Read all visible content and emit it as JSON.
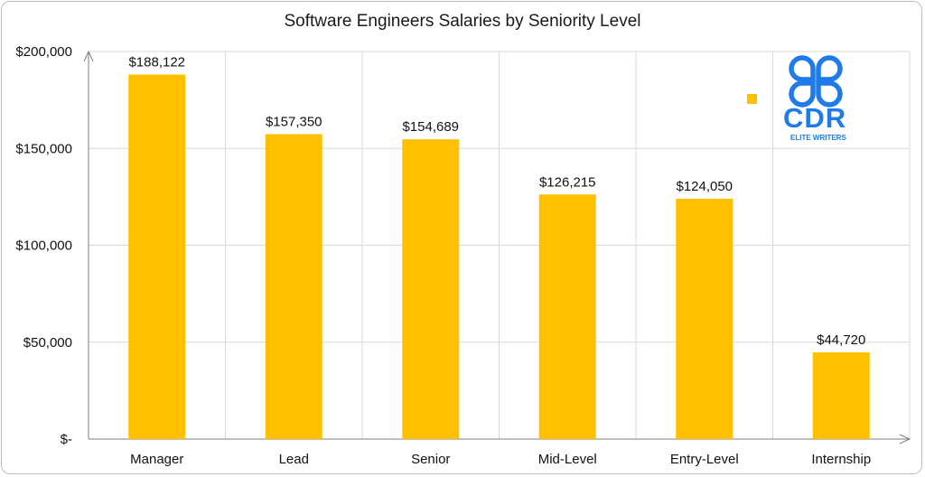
{
  "chart_data": {
    "type": "bar",
    "title": "Software Engineers Salaries by Seniority Level",
    "categories": [
      "Manager",
      "Lead",
      "Senior",
      "Mid-Level",
      "Entry-Level",
      "Internship"
    ],
    "series": [
      {
        "values": [
          188122,
          157350,
          154689,
          126215,
          124050,
          44720
        ],
        "color": "#FFC000"
      }
    ],
    "data_labels": [
      "$188,122",
      "$157,350",
      "$154,689",
      "$126,215",
      "$124,050",
      "$44,720"
    ],
    "y_ticks": [
      0,
      50000,
      100000,
      150000,
      200000
    ],
    "y_tick_labels": [
      "$-",
      "$50,000",
      "$100,000",
      "$150,000",
      "$200,000"
    ],
    "ylim": [
      0,
      200000
    ],
    "grid": true,
    "legend_marker_color": "#FFC000"
  },
  "logo": {
    "icon": "cdr-logo-icon",
    "text": "CDR",
    "tagline": "ELITE WRITERS",
    "color": "#1E7BE8"
  }
}
